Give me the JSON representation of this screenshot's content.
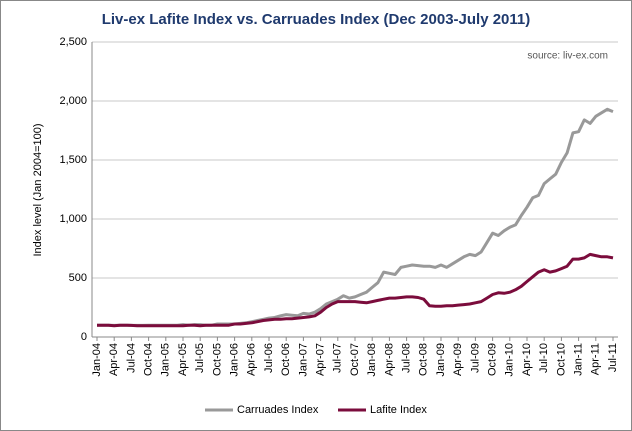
{
  "chart_data": {
    "type": "line",
    "title": "Liv-ex Lafite Index vs. Carruades Index (Dec 2003-July 2011)",
    "annotation": "source: liv-ex.com",
    "y_label": "Index level (Jan 2004=100)",
    "categories": [
      "Jan-04",
      null,
      null,
      "Apr-04",
      null,
      null,
      "Jul-04",
      null,
      null,
      "Oct-04",
      null,
      null,
      "Jan-05",
      null,
      null,
      "Apr-05",
      null,
      null,
      "Jul-05",
      null,
      null,
      "Oct-05",
      null,
      null,
      "Jan-06",
      null,
      null,
      "Apr-06",
      null,
      null,
      "Jul-06",
      null,
      null,
      "Oct-06",
      null,
      null,
      "Jan-07",
      null,
      null,
      "Apr-07",
      null,
      null,
      "Jul-07",
      null,
      null,
      "Oct-07",
      null,
      null,
      "Jan-08",
      null,
      null,
      "Apr-08",
      null,
      null,
      "Jul-08",
      null,
      null,
      "Oct-08",
      null,
      null,
      "Jan-09",
      null,
      null,
      "Apr-09",
      null,
      null,
      "Jul-09",
      null,
      null,
      "Oct-09",
      null,
      null,
      "Jan-10",
      null,
      null,
      "Apr-10",
      null,
      null,
      "Jul-10",
      null,
      null,
      "Oct-10",
      null,
      null,
      "Jan-11",
      null,
      null,
      "Apr-11",
      null,
      null,
      "Jul-11"
    ],
    "series": [
      {
        "name": "Carruades Index",
        "color": "#999999",
        "values": [
          100,
          100,
          100,
          98,
          100,
          100,
          98,
          98,
          98,
          100,
          100,
          100,
          100,
          100,
          100,
          105,
          100,
          105,
          105,
          100,
          100,
          110,
          110,
          110,
          110,
          115,
          120,
          130,
          140,
          150,
          160,
          165,
          180,
          190,
          185,
          180,
          200,
          195,
          210,
          240,
          280,
          300,
          320,
          350,
          330,
          340,
          360,
          380,
          420,
          460,
          550,
          540,
          530,
          590,
          600,
          610,
          605,
          600,
          600,
          590,
          610,
          590,
          620,
          650,
          680,
          700,
          690,
          720,
          800,
          880,
          860,
          900,
          930,
          950,
          1030,
          1100,
          1180,
          1200,
          1300,
          1340,
          1380,
          1480,
          1560,
          1730,
          1740,
          1840,
          1810,
          1870,
          1900,
          1930,
          1910
        ]
      },
      {
        "name": "Lafite Index",
        "color": "#7b0c3c",
        "values": [
          100,
          100,
          100,
          95,
          100,
          100,
          98,
          95,
          95,
          95,
          95,
          95,
          95,
          95,
          95,
          95,
          100,
          100,
          95,
          100,
          100,
          100,
          100,
          100,
          110,
          110,
          115,
          120,
          130,
          140,
          145,
          150,
          150,
          155,
          155,
          160,
          165,
          170,
          180,
          210,
          250,
          280,
          300,
          300,
          300,
          300,
          295,
          290,
          300,
          310,
          320,
          330,
          330,
          335,
          340,
          340,
          335,
          320,
          265,
          260,
          260,
          265,
          265,
          270,
          275,
          280,
          290,
          300,
          330,
          360,
          375,
          370,
          380,
          400,
          430,
          470,
          510,
          550,
          570,
          550,
          560,
          580,
          600,
          660,
          660,
          670,
          700,
          690,
          680,
          680,
          670
        ]
      }
    ],
    "ylim": [
      0,
      2500
    ],
    "yticks": [
      0,
      500,
      {
        "value": 1000,
        "label": "1,000"
      },
      {
        "value": 1500,
        "label": "1,500"
      },
      {
        "value": 2000,
        "label": "2,000"
      },
      {
        "value": 2500,
        "label": "2,500"
      }
    ],
    "grid": true,
    "legend": "bottom"
  }
}
